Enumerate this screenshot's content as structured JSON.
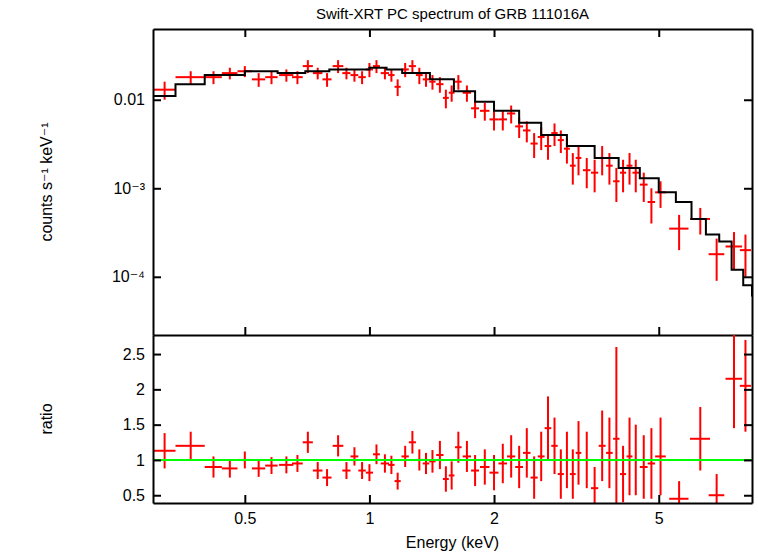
{
  "chart_data": [
    {
      "type": "scatter",
      "title": "Swift-XRT PC spectrum of GRB 111016A",
      "y_label": "counts s⁻¹ keV⁻¹",
      "log": true,
      "xlim": [
        0.3,
        8.4
      ],
      "ylim": [
        2.2e-05,
        0.063
      ],
      "xticks": [
        0.5,
        1,
        2,
        5
      ],
      "yticks": [
        {
          "value": 0.0001,
          "label": "10⁻⁴"
        },
        {
          "value": 0.001,
          "label": "10⁻³"
        },
        0.01
      ],
      "tick_labels": "y",
      "series": [
        {
          "type": "scatter",
          "marker": "cross",
          "color": "#ff0000",
          "x": [
            0.32,
            0.37,
            0.42,
            0.46,
            0.5,
            0.54,
            0.58,
            0.63,
            0.67,
            0.71,
            0.75,
            0.79,
            0.84,
            0.88,
            0.92,
            0.96,
            1.0,
            1.04,
            1.09,
            1.13,
            1.17,
            1.22,
            1.27,
            1.32,
            1.37,
            1.42,
            1.48,
            1.53,
            1.58,
            1.64,
            1.72,
            1.8,
            1.9,
            2.0,
            2.1,
            2.2,
            2.3,
            2.4,
            2.5,
            2.6,
            2.7,
            2.8,
            2.9,
            3.0,
            3.1,
            3.2,
            3.35,
            3.5,
            3.65,
            3.8,
            3.95,
            4.1,
            4.25,
            4.4,
            4.6,
            4.8,
            5.05,
            5.6,
            6.3,
            6.9,
            7.6,
            8.1
          ],
          "x_errors": [
            0.02,
            0.03,
            0.02,
            0.02,
            0.02,
            0.02,
            0.02,
            0.025,
            0.02,
            0.02,
            0.02,
            0.02,
            0.025,
            0.02,
            0.02,
            0.02,
            0.02,
            0.02,
            0.025,
            0.02,
            0.02,
            0.025,
            0.025,
            0.025,
            0.025,
            0.025,
            0.03,
            0.025,
            0.025,
            0.03,
            0.04,
            0.04,
            0.05,
            0.05,
            0.05,
            0.05,
            0.05,
            0.05,
            0.05,
            0.05,
            0.05,
            0.05,
            0.05,
            0.05,
            0.05,
            0.05,
            0.07,
            0.07,
            0.07,
            0.07,
            0.07,
            0.07,
            0.07,
            0.08,
            0.1,
            0.1,
            0.15,
            0.3,
            0.35,
            0.3,
            0.35,
            0.25
          ],
          "values": [
            0.013,
            0.018,
            0.018,
            0.02,
            0.021,
            0.017,
            0.018,
            0.019,
            0.018,
            0.024,
            0.02,
            0.017,
            0.024,
            0.02,
            0.019,
            0.018,
            0.022,
            0.024,
            0.02,
            0.019,
            0.014,
            0.022,
            0.024,
            0.019,
            0.017,
            0.016,
            0.015,
            0.0105,
            0.012,
            0.016,
            0.012,
            0.008,
            0.0075,
            0.006,
            0.006,
            0.007,
            0.005,
            0.0045,
            0.0032,
            0.0038,
            0.003,
            0.0042,
            0.0035,
            0.0028,
            0.0018,
            0.0022,
            0.0016,
            0.0015,
            0.0022,
            0.0018,
            0.0012,
            0.0015,
            0.0018,
            0.0015,
            0.0011,
            0.0007,
            0.0009,
            0.00035,
            0.00045,
            0.00018,
            0.00022,
            0.0002
          ],
          "errors": [
            0.003,
            0.003,
            0.003,
            0.003,
            0.003,
            0.003,
            0.003,
            0.003,
            0.003,
            0.004,
            0.003,
            0.003,
            0.004,
            0.003,
            0.003,
            0.003,
            0.004,
            0.004,
            0.003,
            0.003,
            0.003,
            0.004,
            0.004,
            0.004,
            0.003,
            0.003,
            0.003,
            0.0025,
            0.0025,
            0.003,
            0.0025,
            0.0018,
            0.0017,
            0.0015,
            0.0015,
            0.0016,
            0.0013,
            0.0012,
            0.001,
            0.0011,
            0.0009,
            0.0012,
            0.001,
            0.0009,
            0.0007,
            0.0008,
            0.0006,
            0.0006,
            0.0008,
            0.0007,
            0.0005,
            0.0006,
            0.0007,
            0.0006,
            0.0004,
            0.0003,
            0.0003,
            0.00015,
            0.00015,
            9e-05,
            0.0001,
            0.0001
          ]
        },
        {
          "type": "line",
          "line_style": "step",
          "color": "#000000",
          "x": [
            0.3,
            0.34,
            0.4,
            0.5,
            0.6,
            0.7,
            0.8,
            0.9,
            1.0,
            1.1,
            1.2,
            1.4,
            1.6,
            1.8,
            2.0,
            2.3,
            2.6,
            3.0,
            3.5,
            4.0,
            4.5,
            5.0,
            5.5,
            6.0,
            6.5,
            7.0,
            7.5,
            8.0,
            8.4
          ],
          "values": [
            0.011,
            0.015,
            0.019,
            0.021,
            0.02,
            0.021,
            0.022,
            0.022,
            0.023,
            0.022,
            0.02,
            0.017,
            0.0125,
            0.0095,
            0.0075,
            0.0055,
            0.004,
            0.003,
            0.0022,
            0.0017,
            0.0013,
            0.0009,
            0.0007,
            0.00045,
            0.0003,
            0.00025,
            0.00012,
            8e-05,
            6e-05
          ]
        }
      ]
    },
    {
      "type": "scatter",
      "x_label": "Energy (keV)",
      "y_label": "ratio",
      "log": "x",
      "xlim": [
        0.3,
        8.4
      ],
      "ylim": [
        0.39,
        2.77
      ],
      "xticks": [
        0.5,
        1,
        2,
        5
      ],
      "yticks": [
        0.5,
        1,
        1.5,
        2,
        2.5
      ],
      "series": [
        {
          "type": "scatter",
          "marker": "cross",
          "color": "#ff0000",
          "x": [
            0.32,
            0.37,
            0.42,
            0.46,
            0.5,
            0.54,
            0.58,
            0.63,
            0.67,
            0.71,
            0.75,
            0.79,
            0.84,
            0.88,
            0.92,
            0.96,
            1.0,
            1.04,
            1.09,
            1.13,
            1.17,
            1.22,
            1.27,
            1.32,
            1.37,
            1.42,
            1.48,
            1.53,
            1.58,
            1.64,
            1.72,
            1.8,
            1.9,
            2.0,
            2.1,
            2.2,
            2.3,
            2.4,
            2.5,
            2.6,
            2.7,
            2.8,
            2.9,
            3.0,
            3.1,
            3.2,
            3.35,
            3.5,
            3.65,
            3.8,
            3.95,
            4.1,
            4.25,
            4.4,
            4.6,
            4.8,
            5.05,
            5.6,
            6.3,
            6.9,
            7.6,
            8.1
          ],
          "x_errors": [
            0.02,
            0.03,
            0.02,
            0.02,
            0.02,
            0.02,
            0.02,
            0.025,
            0.02,
            0.02,
            0.02,
            0.02,
            0.025,
            0.02,
            0.02,
            0.02,
            0.02,
            0.02,
            0.025,
            0.02,
            0.02,
            0.025,
            0.025,
            0.025,
            0.025,
            0.025,
            0.03,
            0.025,
            0.025,
            0.03,
            0.04,
            0.04,
            0.05,
            0.05,
            0.05,
            0.05,
            0.05,
            0.05,
            0.05,
            0.05,
            0.05,
            0.05,
            0.05,
            0.05,
            0.05,
            0.05,
            0.07,
            0.07,
            0.07,
            0.07,
            0.07,
            0.07,
            0.07,
            0.08,
            0.1,
            0.1,
            0.15,
            0.3,
            0.35,
            0.3,
            0.35,
            0.25
          ],
          "values": [
            1.13,
            1.2,
            0.9,
            0.88,
            1.0,
            0.88,
            0.92,
            0.93,
            0.95,
            1.25,
            0.85,
            0.75,
            1.2,
            0.85,
            1.05,
            0.85,
            0.82,
            1.08,
            0.95,
            0.93,
            0.7,
            1.05,
            1.25,
            1.0,
            0.95,
            0.98,
            1.07,
            0.73,
            0.78,
            1.18,
            1.05,
            0.85,
            0.9,
            0.82,
            0.95,
            1.05,
            0.9,
            1.1,
            0.75,
            1.05,
            1.45,
            1.2,
            0.8,
            1.0,
            0.8,
            1.1,
            1.0,
            0.6,
            1.2,
            1.1,
            1.3,
            0.8,
            1.05,
            1.0,
            0.9,
            0.95,
            1.05,
            0.45,
            1.3,
            0.5,
            2.15,
            2.05
          ],
          "errors": [
            0.25,
            0.2,
            0.15,
            0.13,
            0.12,
            0.12,
            0.12,
            0.12,
            0.12,
            0.15,
            0.12,
            0.12,
            0.15,
            0.12,
            0.13,
            0.12,
            0.12,
            0.14,
            0.13,
            0.13,
            0.12,
            0.15,
            0.16,
            0.15,
            0.15,
            0.16,
            0.2,
            0.18,
            0.2,
            0.22,
            0.22,
            0.22,
            0.25,
            0.25,
            0.28,
            0.3,
            0.3,
            0.35,
            0.3,
            0.35,
            0.45,
            0.4,
            0.35,
            0.4,
            0.35,
            0.45,
            0.4,
            0.3,
            0.5,
            0.5,
            1.3,
            0.4,
            0.55,
            0.5,
            0.45,
            0.5,
            0.55,
            0.25,
            0.45,
            0.3,
            0.7,
            0.65
          ]
        },
        {
          "type": "line",
          "color": "#00ff00",
          "x": [
            0.3,
            8.4
          ],
          "values": [
            1,
            1
          ]
        }
      ]
    }
  ]
}
